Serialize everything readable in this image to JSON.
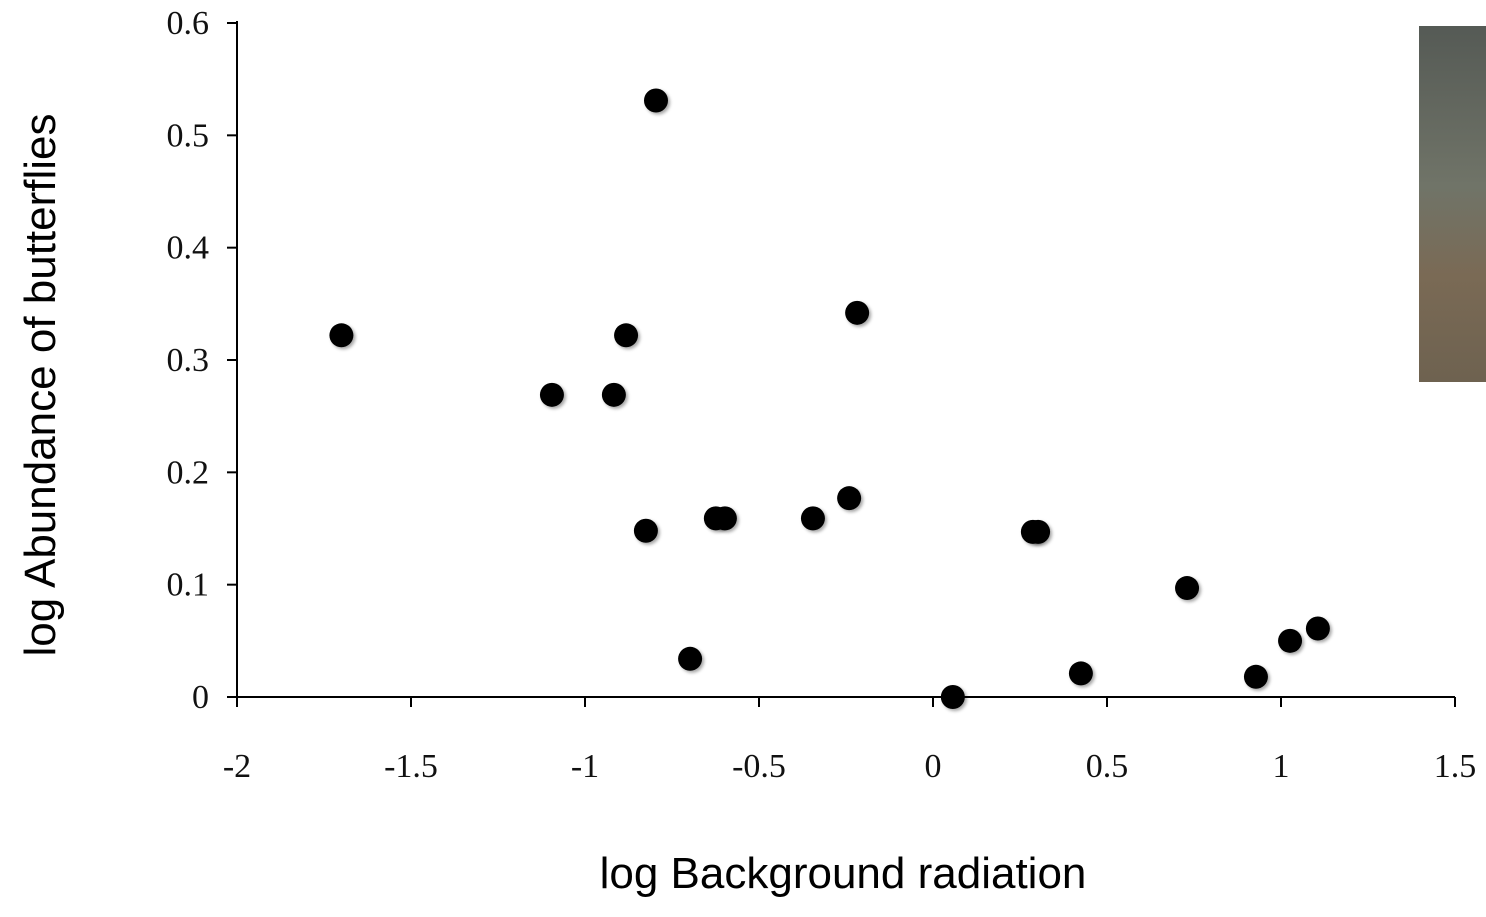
{
  "chart_data": {
    "type": "scatter",
    "x_label": "log Background radiation",
    "y_label": "log Abundance of butterflies",
    "series": [
      {
        "color": "#000000",
        "x": [
          -1.7,
          -1.095,
          -0.917,
          -0.882,
          -0.796,
          -0.825,
          -0.698,
          -0.624,
          -0.598,
          -0.345,
          -0.241,
          -0.218,
          0.057,
          0.287,
          0.302,
          0.425,
          0.73,
          0.928,
          1.026,
          1.106
        ],
        "values": [
          0.322,
          0.269,
          0.269,
          0.322,
          0.531,
          0.148,
          0.034,
          0.159,
          0.159,
          0.159,
          0.177,
          0.342,
          0,
          0.147,
          0.147,
          0.021,
          0.097,
          0.018,
          0.05,
          0.061
        ]
      }
    ],
    "xlim": [
      -2,
      1.5
    ],
    "xticks": [
      -2,
      -1.5,
      -1,
      -0.5,
      0,
      0.5,
      1,
      1.5
    ],
    "ylim": [
      0,
      0.6
    ],
    "yticks": [
      0,
      0.1,
      0.2,
      0.3,
      0.4,
      0.5,
      0.6
    ]
  }
}
